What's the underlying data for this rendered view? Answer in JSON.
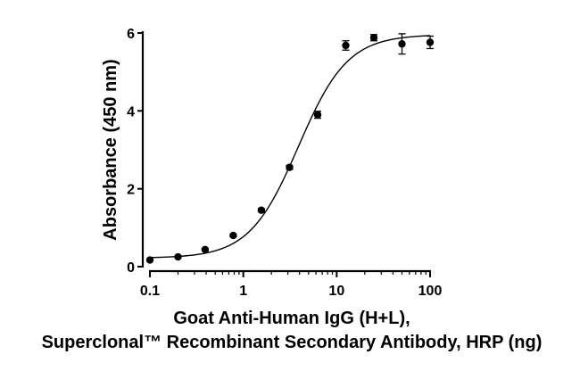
{
  "chart_data": {
    "type": "scatter",
    "xlabel_lines": [
      "Goat Anti-Human IgG (H+L),",
      "Superclonal™ Recombinant Secondary Antibody, HRP (ng)"
    ],
    "ylabel": "Absorbance (450 nm)",
    "x_scale": "log",
    "xlim": [
      0.1,
      100
    ],
    "ylim": [
      0,
      6
    ],
    "x_ticks": [
      0.1,
      1,
      10,
      100
    ],
    "x_tick_labels": [
      "0.1",
      "1",
      "10",
      "100"
    ],
    "y_ticks": [
      0,
      2,
      4,
      6
    ],
    "y_tick_labels": [
      "0",
      "2",
      "4",
      "6"
    ],
    "grid": false,
    "series": [
      {
        "x": [
          0.1,
          0.2,
          0.39,
          0.78,
          1.56,
          3.125,
          6.25,
          12.5,
          25,
          50,
          100
        ],
        "y": [
          0.17,
          0.25,
          0.44,
          0.8,
          1.45,
          2.55,
          3.9,
          5.68,
          5.88,
          5.72,
          5.76
        ],
        "error": [
          0.02,
          0.02,
          0.03,
          0.03,
          0.04,
          0.05,
          0.09,
          0.12,
          0.08,
          0.26,
          0.16
        ]
      }
    ],
    "fit_curve": {
      "model": "4PL",
      "bottom": 0.22,
      "top": 5.96,
      "ec50": 3.9,
      "hill": 1.65
    }
  }
}
